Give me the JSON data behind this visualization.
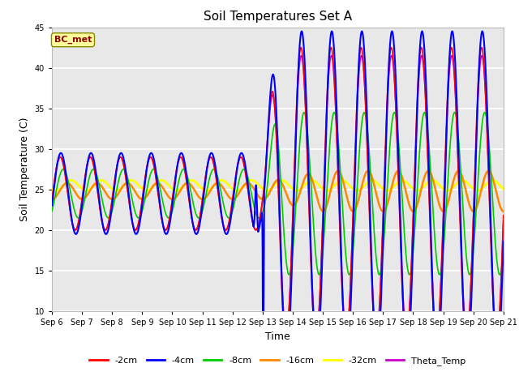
{
  "title": "Soil Temperatures Set A",
  "xlabel": "Time",
  "ylabel": "Soil Temperature (C)",
  "ylim": [
    10,
    45
  ],
  "yticks": [
    10,
    15,
    20,
    25,
    30,
    35,
    40,
    45
  ],
  "annotation": "BC_met",
  "annotation_color": "#8B0000",
  "annotation_bg": "#FFFF99",
  "fig_bg": "#FFFFFF",
  "plot_bg": "#E8E8E8",
  "grid_color": "#FFFFFF",
  "legend_entries": [
    "-2cm",
    "-4cm",
    "-8cm",
    "-16cm",
    "-32cm",
    "Theta_Temp"
  ],
  "line_colors": [
    "#FF0000",
    "#0000FF",
    "#00CC00",
    "#FF8800",
    "#FFFF00",
    "#CC00CC"
  ],
  "line_widths": [
    1.2,
    1.5,
    1.2,
    1.8,
    2.0,
    1.2
  ],
  "n_days": 15,
  "start_day": 6,
  "base_temp": 24.5
}
